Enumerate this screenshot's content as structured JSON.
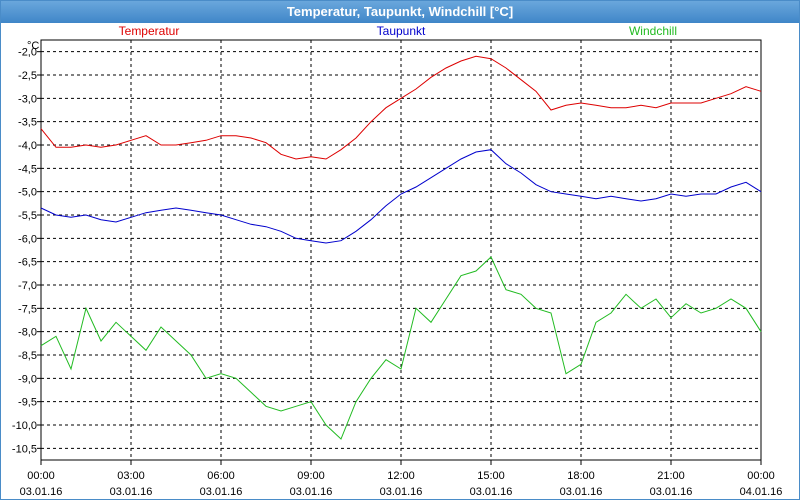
{
  "window": {
    "title": "Temperatur, Taupunkt, Windchill [°C]"
  },
  "chart_data": {
    "type": "line",
    "title": "Temperatur, Taupunkt, Windchill [°C]",
    "ylabel": "°C",
    "ylim": [
      -10.75,
      -1.75
    ],
    "yticks": [
      "-2,0",
      "-2,5",
      "-3,0",
      "-3,5",
      "-4,0",
      "-4,5",
      "-5,0",
      "-5,5",
      "-6,0",
      "-6,5",
      "-7,0",
      "-7,5",
      "-8,0",
      "-8,5",
      "-9,0",
      "-9,5",
      "-10,0",
      "-10,5"
    ],
    "xticks": [
      {
        "time": "00:00",
        "date": "03.01.16"
      },
      {
        "time": "03:00",
        "date": "03.01.16"
      },
      {
        "time": "06:00",
        "date": "03.01.16"
      },
      {
        "time": "09:00",
        "date": "03.01.16"
      },
      {
        "time": "12:00",
        "date": "03.01.16"
      },
      {
        "time": "15:00",
        "date": "03.01.16"
      },
      {
        "time": "18:00",
        "date": "03.01.16"
      },
      {
        "time": "21:00",
        "date": "03.01.16"
      },
      {
        "time": "00:00",
        "date": "04.01.16"
      }
    ],
    "xlim_hours": [
      0,
      24
    ],
    "grid": true,
    "legend_position": "top",
    "series": [
      {
        "name": "Temperatur",
        "color": "#dd0000",
        "hours": [
          0,
          0.5,
          1,
          1.5,
          2,
          2.5,
          3,
          3.5,
          4,
          4.5,
          5,
          5.5,
          6,
          6.5,
          7,
          7.5,
          8,
          8.5,
          9,
          9.5,
          10,
          10.5,
          11,
          11.5,
          12,
          12.5,
          13,
          13.5,
          14,
          14.5,
          15,
          15.5,
          16,
          16.5,
          17,
          17.5,
          18,
          18.5,
          19,
          19.5,
          20,
          20.5,
          21,
          21.5,
          22,
          22.5,
          23,
          23.5,
          24
        ],
        "values": [
          -3.65,
          -4.05,
          -4.05,
          -4.0,
          -4.05,
          -4.0,
          -3.9,
          -3.8,
          -4.0,
          -4.0,
          -3.95,
          -3.9,
          -3.8,
          -3.8,
          -3.85,
          -3.95,
          -4.2,
          -4.3,
          -4.25,
          -4.3,
          -4.1,
          -3.85,
          -3.5,
          -3.2,
          -3.0,
          -2.8,
          -2.55,
          -2.35,
          -2.2,
          -2.1,
          -2.15,
          -2.35,
          -2.6,
          -2.85,
          -3.25,
          -3.15,
          -3.1,
          -3.15,
          -3.2,
          -3.2,
          -3.15,
          -3.2,
          -3.1,
          -3.1,
          -3.1,
          -3.0,
          -2.9,
          -2.75,
          -2.85
        ]
      },
      {
        "name": "Taupunkt",
        "color": "#0000cc",
        "hours": [
          0,
          0.5,
          1,
          1.5,
          2,
          2.5,
          3,
          3.5,
          4,
          4.5,
          5,
          5.5,
          6,
          6.5,
          7,
          7.5,
          8,
          8.5,
          9,
          9.5,
          10,
          10.5,
          11,
          11.5,
          12,
          12.5,
          13,
          13.5,
          14,
          14.5,
          15,
          15.5,
          16,
          16.5,
          17,
          17.5,
          18,
          18.5,
          19,
          19.5,
          20,
          20.5,
          21,
          21.5,
          22,
          22.5,
          23,
          23.5,
          24
        ],
        "values": [
          -5.35,
          -5.5,
          -5.55,
          -5.5,
          -5.6,
          -5.65,
          -5.55,
          -5.45,
          -5.4,
          -5.35,
          -5.4,
          -5.45,
          -5.5,
          -5.6,
          -5.7,
          -5.75,
          -5.85,
          -6.0,
          -6.05,
          -6.1,
          -6.05,
          -5.85,
          -5.6,
          -5.3,
          -5.05,
          -4.9,
          -4.7,
          -4.5,
          -4.3,
          -4.15,
          -4.1,
          -4.4,
          -4.6,
          -4.85,
          -5.0,
          -5.05,
          -5.1,
          -5.15,
          -5.1,
          -5.15,
          -5.2,
          -5.15,
          -5.05,
          -5.1,
          -5.05,
          -5.05,
          -4.9,
          -4.8,
          -5.0
        ]
      },
      {
        "name": "Windchill",
        "color": "#22bb22",
        "hours": [
          0,
          0.5,
          1,
          1.5,
          2,
          2.5,
          3,
          3.5,
          4,
          4.5,
          5,
          5.5,
          6,
          6.5,
          7,
          7.5,
          8,
          8.5,
          9,
          9.5,
          10,
          10.5,
          11,
          11.5,
          12,
          12.5,
          13,
          13.5,
          14,
          14.5,
          15,
          15.5,
          16,
          16.5,
          17,
          17.5,
          18,
          18.5,
          19,
          19.5,
          20,
          20.5,
          21,
          21.5,
          22,
          22.5,
          23,
          23.5,
          24
        ],
        "values": [
          -8.3,
          -8.1,
          -8.8,
          -7.5,
          -8.2,
          -7.8,
          -8.1,
          -8.4,
          -7.9,
          -8.2,
          -8.5,
          -9.0,
          -8.9,
          -9.0,
          -9.3,
          -9.6,
          -9.7,
          -9.6,
          -9.5,
          -10.0,
          -10.3,
          -9.5,
          -9.0,
          -8.6,
          -8.8,
          -7.5,
          -7.8,
          -7.3,
          -6.8,
          -6.7,
          -6.4,
          -7.1,
          -7.2,
          -7.5,
          -7.6,
          -8.9,
          -8.7,
          -7.8,
          -7.6,
          -7.2,
          -7.5,
          -7.3,
          -7.7,
          -7.4,
          -7.6,
          -7.5,
          -7.3,
          -7.5,
          -8.0
        ]
      }
    ]
  }
}
